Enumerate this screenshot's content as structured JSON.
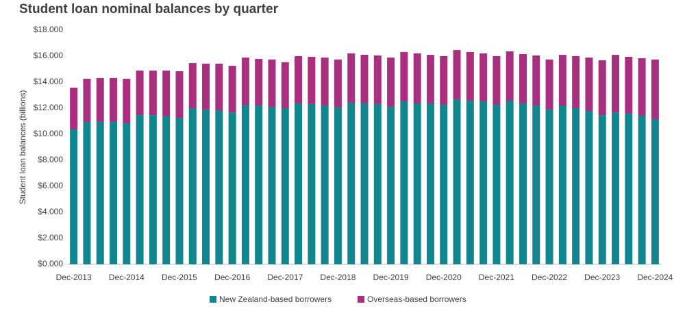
{
  "chart_data": {
    "type": "stacked_bar",
    "title": "Student loan nominal balances by quarter",
    "y_label": "Student loan balances (billions)",
    "categories": [
      "Dec-2013",
      null,
      null,
      null,
      "Dec-2014",
      null,
      null,
      null,
      "Dec-2015",
      null,
      null,
      null,
      "Dec-2016",
      null,
      null,
      null,
      "Dec-2017",
      null,
      null,
      null,
      "Dec-2018",
      null,
      null,
      null,
      "Dec-2019",
      null,
      null,
      null,
      "Dec-2020",
      null,
      null,
      null,
      "Dec-2021",
      null,
      null,
      null,
      "Dec-2022",
      null,
      null,
      null,
      "Dec-2023",
      null,
      null,
      null,
      "Dec-2024"
    ],
    "series": [
      {
        "name": "New Zealand-based borrowers",
        "color": "#12868f",
        "values": [
          10.37,
          10.95,
          10.95,
          10.95,
          10.84,
          11.47,
          11.47,
          11.37,
          11.26,
          12.0,
          11.9,
          11.84,
          11.68,
          12.26,
          12.21,
          12.1,
          12.0,
          12.37,
          12.32,
          12.21,
          12.05,
          12.42,
          12.37,
          12.32,
          12.1,
          12.53,
          12.37,
          12.37,
          12.26,
          12.68,
          12.58,
          12.53,
          12.26,
          12.58,
          12.37,
          12.21,
          11.9,
          12.21,
          12.0,
          11.79,
          11.47,
          11.68,
          11.58,
          11.42,
          11.16
        ]
      },
      {
        "name": "Overseas-based borrowers",
        "color": "#a8307e",
        "values": [
          3.21,
          3.31,
          3.37,
          3.37,
          3.42,
          3.42,
          3.42,
          3.52,
          3.58,
          3.47,
          3.52,
          3.58,
          3.58,
          3.63,
          3.58,
          3.64,
          3.53,
          3.63,
          3.63,
          3.68,
          3.69,
          3.79,
          3.74,
          3.73,
          3.79,
          3.79,
          3.84,
          3.73,
          3.74,
          3.79,
          3.74,
          3.68,
          3.74,
          3.79,
          3.79,
          3.84,
          3.84,
          3.89,
          4.0,
          4.1,
          4.21,
          4.42,
          4.37,
          4.42,
          4.58
        ]
      }
    ],
    "ylim": [
      0,
      18
    ],
    "yticks": [
      {
        "value": 0,
        "label": "$0.000"
      },
      {
        "value": 2,
        "label": "$2.000"
      },
      {
        "value": 4,
        "label": "$4.000"
      },
      {
        "value": 6,
        "label": "$6.000"
      },
      {
        "value": 8,
        "label": "$8.000"
      },
      {
        "value": 10,
        "label": "$10.000"
      },
      {
        "value": 12,
        "label": "$12.000"
      },
      {
        "value": 14,
        "label": "$14.000"
      },
      {
        "value": 16,
        "label": "$16.000"
      },
      {
        "value": 18,
        "label": "$18.000"
      }
    ],
    "grid": false
  }
}
